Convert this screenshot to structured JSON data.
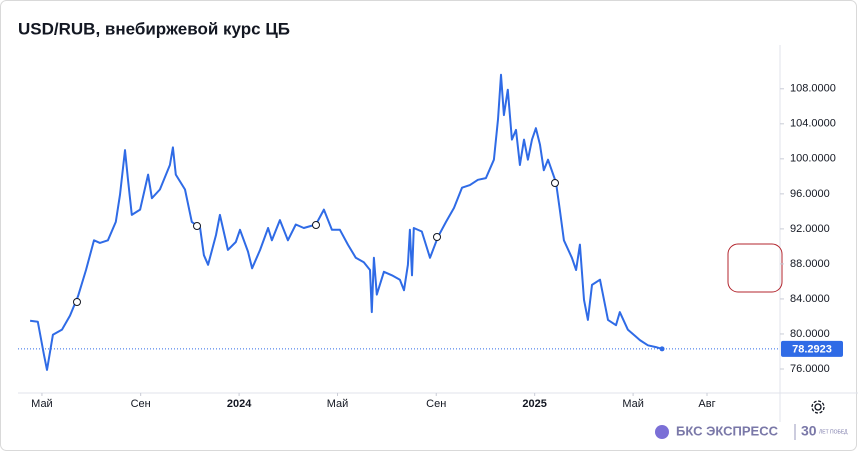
{
  "chart_data": {
    "type": "line",
    "title": "USD/RUB, внебиржевой курс ЦБ",
    "x": [
      2023.293,
      2023.319,
      2023.34,
      2023.35,
      2023.37,
      2023.401,
      2023.428,
      2023.455,
      2023.482,
      2023.509,
      2023.529,
      2023.556,
      2023.583,
      2023.597,
      2023.614,
      2023.624,
      2023.637,
      2023.665,
      2023.692,
      2023.705,
      2023.732,
      2023.766,
      2023.776,
      2023.786,
      2023.817,
      2023.84,
      2023.868,
      2023.881,
      2023.895,
      2023.922,
      2023.935,
      2023.962,
      2023.989,
      2024.003,
      2024.03,
      2024.044,
      2024.071,
      2024.098,
      2024.111,
      2024.138,
      2024.165,
      2024.192,
      2024.219,
      2024.26,
      2024.287,
      2024.314,
      2024.341,
      2024.368,
      2024.395,
      2024.422,
      2024.443,
      2024.449,
      2024.456,
      2024.466,
      2024.49,
      2024.517,
      2024.544,
      2024.558,
      2024.571,
      2024.578,
      2024.585,
      2024.591,
      2024.618,
      2024.646,
      2024.673,
      2024.7,
      2024.727,
      2024.754,
      2024.781,
      2024.808,
      2024.835,
      2024.862,
      2024.876,
      2024.886,
      2024.896,
      2024.909,
      2024.923,
      2024.937,
      2024.95,
      2024.964,
      2024.977,
      2024.991,
      2025.004,
      2025.018,
      2025.031,
      2025.045,
      2025.072,
      2025.085,
      2025.099,
      2025.126,
      2025.14,
      2025.153,
      2025.167,
      2025.18,
      2025.194,
      2025.221,
      2025.248,
      2025.275,
      2025.288,
      2025.315,
      2025.356,
      2025.383,
      2025.41,
      2025.431
    ],
    "series": [
      {
        "color": "#2f6be6",
        "values": [
          81.5,
          81.4,
          77.6,
          75.9,
          79.9,
          80.5,
          82.1,
          84.3,
          87.3,
          90.7,
          90.4,
          90.7,
          92.8,
          95.9,
          101.0,
          97.6,
          93.6,
          94.2,
          98.2,
          95.5,
          96.5,
          99.3,
          101.3,
          98.2,
          96.5,
          92.8,
          92.1,
          89.0,
          87.9,
          91.3,
          93.6,
          89.6,
          90.5,
          91.9,
          89.4,
          87.5,
          89.6,
          92.1,
          90.7,
          93.0,
          90.7,
          92.5,
          92.1,
          92.5,
          94.2,
          91.9,
          91.9,
          90.2,
          88.7,
          88.2,
          87.3,
          82.5,
          88.7,
          84.5,
          87.1,
          86.7,
          86.2,
          85.0,
          87.9,
          91.9,
          86.7,
          92.1,
          91.7,
          88.7,
          91.1,
          92.8,
          94.4,
          96.7,
          97.0,
          97.6,
          97.8,
          99.9,
          104.5,
          109.6,
          105.0,
          107.9,
          102.2,
          103.3,
          99.3,
          102.2,
          99.9,
          102.2,
          103.5,
          101.6,
          98.7,
          99.9,
          97.3,
          94.2,
          90.7,
          88.7,
          87.3,
          90.2,
          83.9,
          81.6,
          85.6,
          86.2,
          81.6,
          81.0,
          82.5,
          80.5,
          79.3,
          78.7,
          78.5,
          78.2923
        ]
      }
    ],
    "xlim": [
      2023.252,
      2025.83
    ],
    "xticks": [
      {
        "value": 2023.333,
        "label": "Май"
      },
      {
        "value": 2023.667,
        "label": "Сен"
      },
      2024,
      {
        "value": 2024.333,
        "label": "Май"
      },
      {
        "value": 2024.667,
        "label": "Сен"
      },
      2025,
      {
        "value": 2025.333,
        "label": "Май"
      },
      {
        "value": 2025.583,
        "label": "Авг"
      }
    ],
    "ylim": [
      73.6,
      113.0
    ],
    "yticks": [
      {
        "value": 76,
        "label": "76.0000"
      },
      {
        "value": 80,
        "label": "80.0000"
      },
      {
        "value": 84,
        "label": "84.0000"
      },
      {
        "value": 88,
        "label": "88.0000"
      },
      {
        "value": 92,
        "label": "92.0000"
      },
      {
        "value": 96,
        "label": "96.0000"
      },
      {
        "value": 100,
        "label": "100.0000"
      },
      {
        "value": 104,
        "label": "104.0000"
      },
      {
        "value": 108,
        "label": "108.0000"
      }
    ],
    "grid": false
  },
  "branding": {
    "name": "БКС ЭКСПРЕСС",
    "years": "30",
    "slogan": "ЛЕТ ПОБЕД"
  }
}
